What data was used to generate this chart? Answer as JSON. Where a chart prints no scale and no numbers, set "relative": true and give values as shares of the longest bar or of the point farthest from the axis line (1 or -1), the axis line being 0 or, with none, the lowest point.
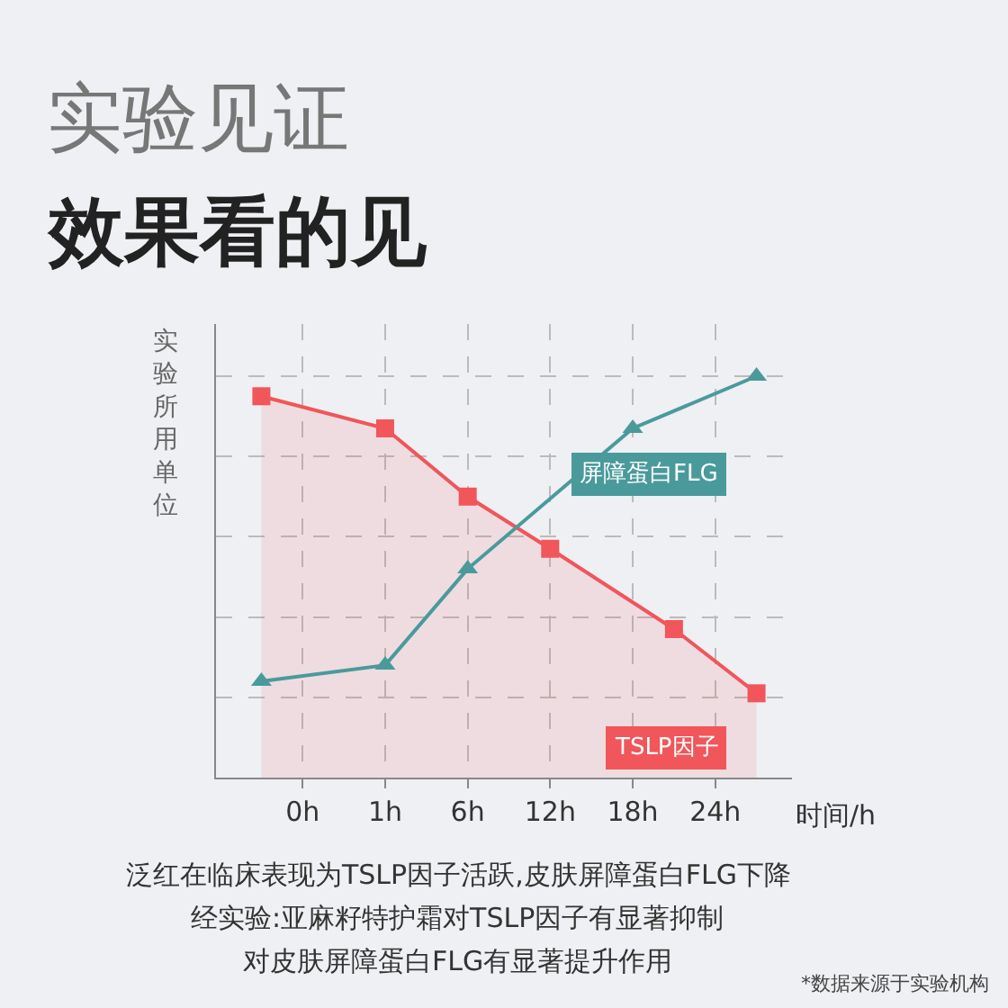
{
  "chart_data": {
    "type": "line",
    "title": "实验见证",
    "subtitle": "效果看的见",
    "ylabel": "实验所用单位",
    "xlabel": "时间/h",
    "relative": true,
    "categories": [
      null,
      "0h",
      null,
      "1h",
      null,
      "6h",
      null,
      "12h",
      null,
      "18h",
      null,
      "24h",
      null
    ],
    "series": [
      {
        "name": "TSLP因子",
        "type": "area",
        "color": "#f0565a",
        "marker": "square",
        "values": [
          0.95,
          null,
          null,
          0.87,
          null,
          0.7,
          null,
          0.57,
          null,
          null,
          0.37,
          null,
          0.21
        ]
      },
      {
        "name": "屏障蛋白FLG",
        "color": "#4a9a9c",
        "marker": "triangle",
        "values": [
          0.24,
          null,
          null,
          0.28,
          null,
          0.52,
          null,
          null,
          null,
          0.87,
          null,
          null,
          1.0
        ]
      }
    ],
    "grid": true,
    "legend": false,
    "annotations": [
      "泛红在临床表现为TSLP因子活跃,皮肤屏障蛋白FLG下降",
      "经实验:亚麻籽特护霜对TSLP因子有显著抑制",
      "对皮肤屏障蛋白FLG有显著提升作用",
      "*数据来源于实验机构"
    ]
  }
}
